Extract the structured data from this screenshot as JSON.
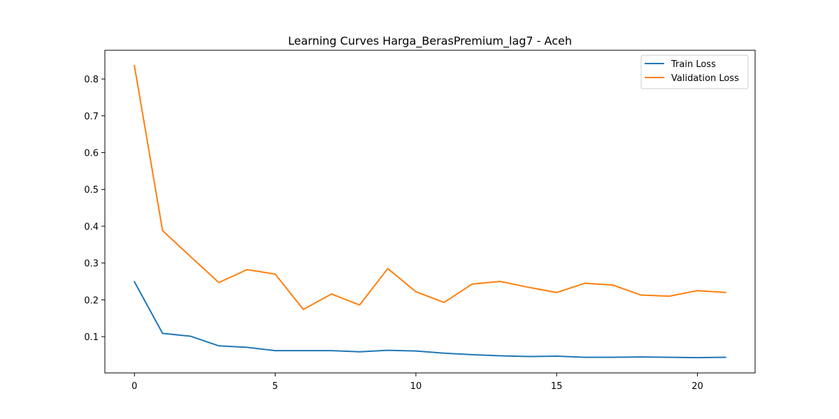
{
  "chart_data": {
    "type": "line",
    "title": "Learning Curves Harga_BerasPremium_lag7 - Aceh",
    "xlabel": "",
    "ylabel": "",
    "xlim": [
      -1.05,
      22.05
    ],
    "ylim": [
      0.0015,
      0.878
    ],
    "xticks": [
      0,
      5,
      10,
      15,
      20
    ],
    "yticks": [
      0.1,
      0.2,
      0.3,
      0.4,
      0.5,
      0.6,
      0.7,
      0.8
    ],
    "xtick_labels": [
      "0",
      "5",
      "10",
      "15",
      "20"
    ],
    "ytick_labels": [
      "0.1",
      "0.2",
      "0.3",
      "0.4",
      "0.5",
      "0.6",
      "0.7",
      "0.8"
    ],
    "grid": false,
    "legend_position": "top-right",
    "x": [
      0,
      1,
      2,
      3,
      4,
      5,
      6,
      7,
      8,
      9,
      10,
      11,
      12,
      13,
      14,
      15,
      16,
      17,
      18,
      19,
      20,
      21
    ],
    "series": [
      {
        "name": "Train Loss",
        "color": "#1f77b4",
        "values": [
          0.249,
          0.109,
          0.101,
          0.075,
          0.071,
          0.062,
          0.062,
          0.062,
          0.059,
          0.063,
          0.061,
          0.055,
          0.051,
          0.048,
          0.046,
          0.047,
          0.044,
          0.044,
          0.045,
          0.044,
          0.043,
          0.044
        ]
      },
      {
        "name": "Validation Loss",
        "color": "#ff7f0e",
        "values": [
          0.836,
          0.388,
          0.317,
          0.247,
          0.282,
          0.27,
          0.174,
          0.216,
          0.186,
          0.285,
          0.222,
          0.193,
          0.243,
          0.25,
          0.234,
          0.22,
          0.245,
          0.24,
          0.213,
          0.21,
          0.225,
          0.22
        ]
      }
    ]
  }
}
